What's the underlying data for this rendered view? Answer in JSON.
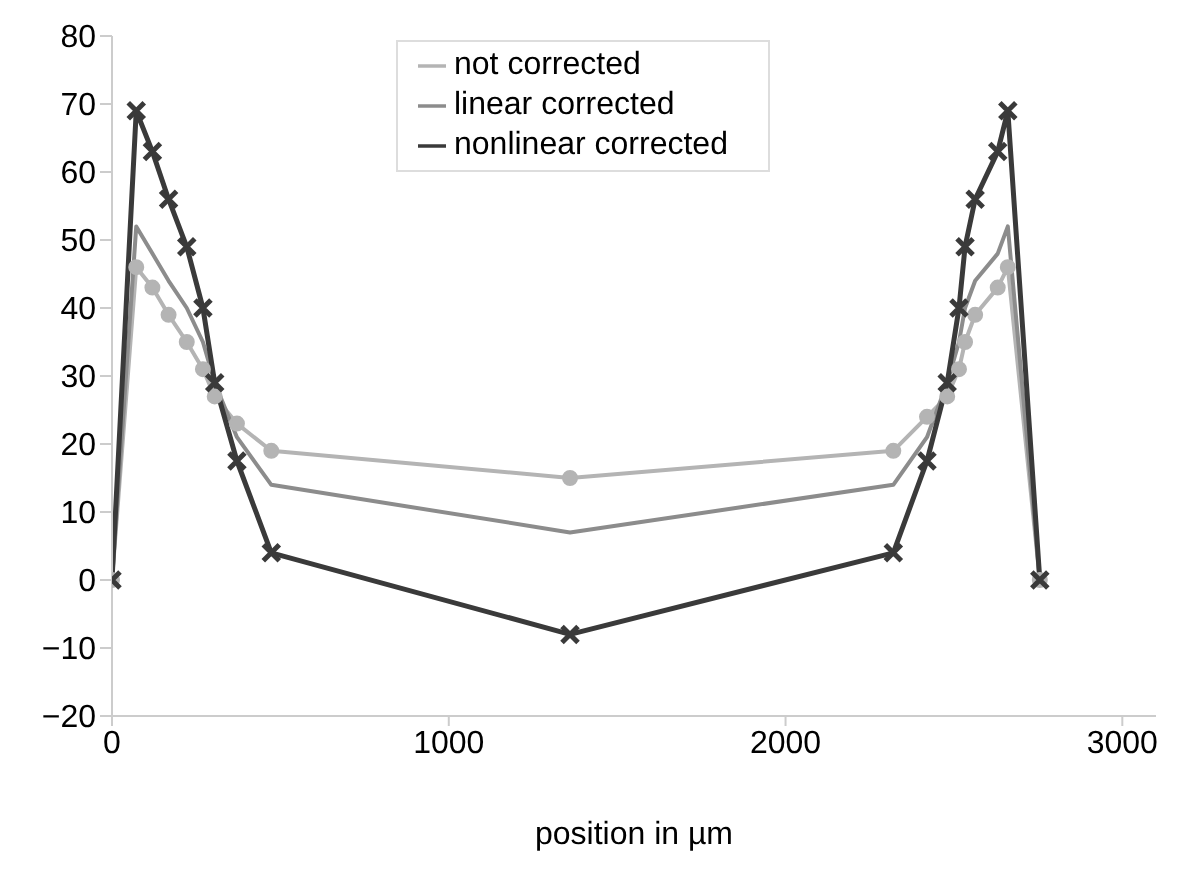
{
  "chart_data": {
    "type": "line",
    "xlabel": "position in µm",
    "x": [
      0,
      72,
      120,
      168,
      222,
      270,
      305,
      371,
      473,
      1360,
      2320,
      2420,
      2480,
      2515,
      2533,
      2563,
      2630,
      2660,
      2755
    ],
    "series": [
      {
        "name": "not corrected",
        "color": "#b4b4b4",
        "marker": "circle",
        "values": [
          0,
          46,
          43,
          39,
          35,
          31,
          27,
          23,
          19,
          15,
          19,
          24,
          27,
          31,
          35,
          39,
          43,
          46,
          0
        ]
      },
      {
        "name": "linear corrected",
        "color": "#8c8c8c",
        "marker": "none",
        "values": [
          0,
          52,
          48,
          44,
          40,
          35,
          29,
          21,
          14,
          7,
          14,
          21,
          29,
          35,
          40,
          44,
          48,
          52,
          0
        ]
      },
      {
        "name": "nonlinear corrected",
        "color": "#3a3a3a",
        "marker": "cross",
        "values": [
          0,
          69,
          63,
          56,
          49,
          40,
          29,
          17.5,
          4,
          -8,
          4,
          17.5,
          29,
          40,
          49,
          56,
          63,
          69,
          0
        ]
      }
    ],
    "xlim": [
      0,
      3100
    ],
    "xticks": [
      0,
      1000,
      2000,
      3000
    ],
    "ylim": [
      -20,
      80
    ],
    "yticks": [
      -20,
      -10,
      0,
      10,
      20,
      30,
      40,
      50,
      60,
      70,
      80
    ],
    "grid": false,
    "legend": "top"
  }
}
